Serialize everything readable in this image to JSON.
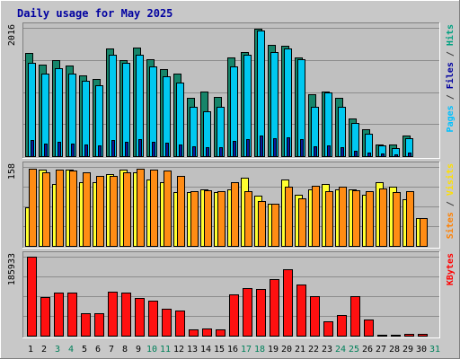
{
  "chart_data": [
    {
      "type": "bar",
      "title": "Daily usage for May 2025",
      "days": [
        "1",
        "2",
        "3",
        "4",
        "5",
        "6",
        "7",
        "8",
        "9",
        "10",
        "11",
        "12",
        "13",
        "14",
        "15",
        "16",
        "17",
        "18",
        "19",
        "20",
        "21",
        "22",
        "23",
        "24",
        "25",
        "26",
        "27",
        "28",
        "29",
        "30",
        "31"
      ],
      "weekend_days": [
        "3",
        "4",
        "10",
        "11",
        "17",
        "18",
        "24",
        "25",
        "31"
      ],
      "panels": [
        {
          "id": "pages-files-hits",
          "max_label": "2016",
          "ymax": 2016,
          "right_label_parts": [
            {
              "text": "Pages",
              "color": "#00c0ff"
            },
            {
              "text": " / ",
              "color": "#404040"
            },
            {
              "text": "Files",
              "color": "#0000a0"
            },
            {
              "text": " / ",
              "color": "#404040"
            },
            {
              "text": "Hits",
              "color": "#00a080"
            }
          ],
          "series": [
            {
              "name": "Hits",
              "color": "#16856a",
              "values": [
                1620,
                1440,
                1510,
                1430,
                1270,
                1210,
                1690,
                1510,
                1710,
                1520,
                1370,
                1290,
                910,
                1010,
                930,
                1550,
                1640,
                2000,
                1750,
                1730,
                1550,
                970,
                1010,
                910,
                590,
                420,
                190,
                190,
                330,
                0,
                0
              ]
            },
            {
              "name": "Files",
              "color": "#00c8f0",
              "values": [
                1470,
                1290,
                1380,
                1290,
                1180,
                1120,
                1590,
                1460,
                1600,
                1410,
                1250,
                1160,
                780,
                710,
                780,
                1410,
                1590,
                1970,
                1630,
                1690,
                1520,
                780,
                1000,
                770,
                520,
                350,
                170,
                120,
                280,
                0,
                0
              ]
            },
            {
              "name": "Pages",
              "color": "#0a1aa0",
              "values": [
                250,
                200,
                220,
                200,
                180,
                170,
                260,
                230,
                270,
                230,
                210,
                190,
                150,
                140,
                140,
                240,
                270,
                330,
                280,
                300,
                270,
                160,
                170,
                140,
                90,
                60,
                40,
                30,
                60,
                0,
                0
              ]
            }
          ]
        },
        {
          "id": "sites-visits",
          "max_label": "158",
          "ymax": 158,
          "right_label_parts": [
            {
              "text": "Sites",
              "color": "#ff8000"
            },
            {
              "text": " / ",
              "color": "#404040"
            },
            {
              "text": "Visits",
              "color": "#ffe000"
            }
          ],
          "series": [
            {
              "name": "Visits",
              "color": "#ffff30",
              "values": [
                78,
                153,
                123,
                153,
                128,
                128,
                143,
                153,
                148,
                133,
                128,
                108,
                108,
                113,
                108,
                113,
                137,
                100,
                85,
                133,
                103,
                113,
                123,
                113,
                113,
                103,
                128,
                118,
                93,
                55,
                0
              ]
            },
            {
              "name": "Sites",
              "color": "#ff8c14",
              "values": [
                155,
                148,
                153,
                150,
                148,
                140,
                140,
                148,
                155,
                153,
                150,
                140,
                110,
                112,
                110,
                128,
                110,
                90,
                85,
                118,
                95,
                120,
                110,
                118,
                112,
                110,
                115,
                108,
                110,
                55,
                0
              ]
            }
          ]
        },
        {
          "id": "kbytes",
          "max_label": "185933",
          "ymax": 185933,
          "right_label_parts": [
            {
              "text": "KBytes",
              "color": "#ff0000"
            }
          ],
          "series": [
            {
              "name": "KBytes",
              "color": "#ff1010",
              "values": [
                185933,
                90000,
                101000,
                101000,
                53000,
                53000,
                104000,
                102000,
                89000,
                82000,
                64000,
                59000,
                14000,
                17000,
                14000,
                97000,
                113000,
                109000,
                134000,
                156000,
                120000,
                92000,
                34000,
                49000,
                92000,
                38000,
                3000,
                3000,
                4000,
                4000,
                0
              ]
            }
          ]
        }
      ]
    }
  ]
}
